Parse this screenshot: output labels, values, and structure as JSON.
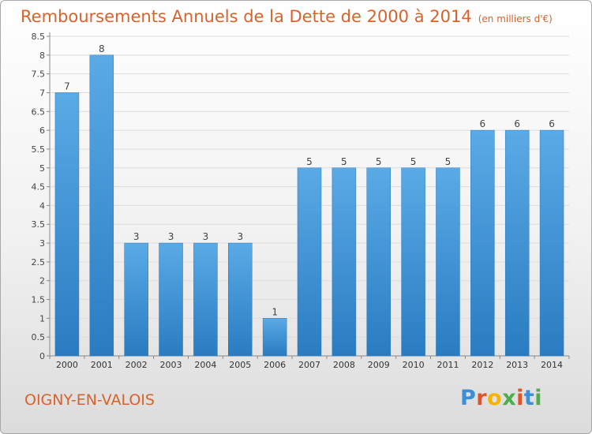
{
  "header": {
    "title": "Remboursements Annuels de la Dette de 2000 à 2014",
    "unit": "(en milliers d'€)"
  },
  "footer": {
    "city": "OIGNY-EN-VALOIS",
    "logo": "Proxiti",
    "logo_colors": [
      "#3b8fd6",
      "#e0542a",
      "#f4b400",
      "#4cae4c",
      "#e0542a",
      "#3b8fd6",
      "#4cae4c"
    ]
  },
  "chart_data": {
    "type": "bar",
    "title": "Remboursements Annuels de la Dette de 2000 à 2014",
    "categories": [
      "2000",
      "2001",
      "2002",
      "2003",
      "2004",
      "2005",
      "2006",
      "2007",
      "2008",
      "2009",
      "2010",
      "2011",
      "2012",
      "2013",
      "2014"
    ],
    "values": [
      7,
      8,
      3,
      3,
      3,
      3,
      1,
      5,
      5,
      5,
      5,
      5,
      6,
      6,
      6
    ],
    "ylim": [
      0,
      8.5
    ],
    "yticks": [
      "0",
      "0.5",
      "1",
      "1.5",
      "2",
      "2.5",
      "3",
      "3.5",
      "4",
      "4.5",
      "5",
      "5.5",
      "6",
      "6.5",
      "7",
      "7.5",
      "8",
      "8.5"
    ],
    "grid": true,
    "bar_color_light": "#5aaae6",
    "bar_color_dark": "#2a7cc2"
  }
}
